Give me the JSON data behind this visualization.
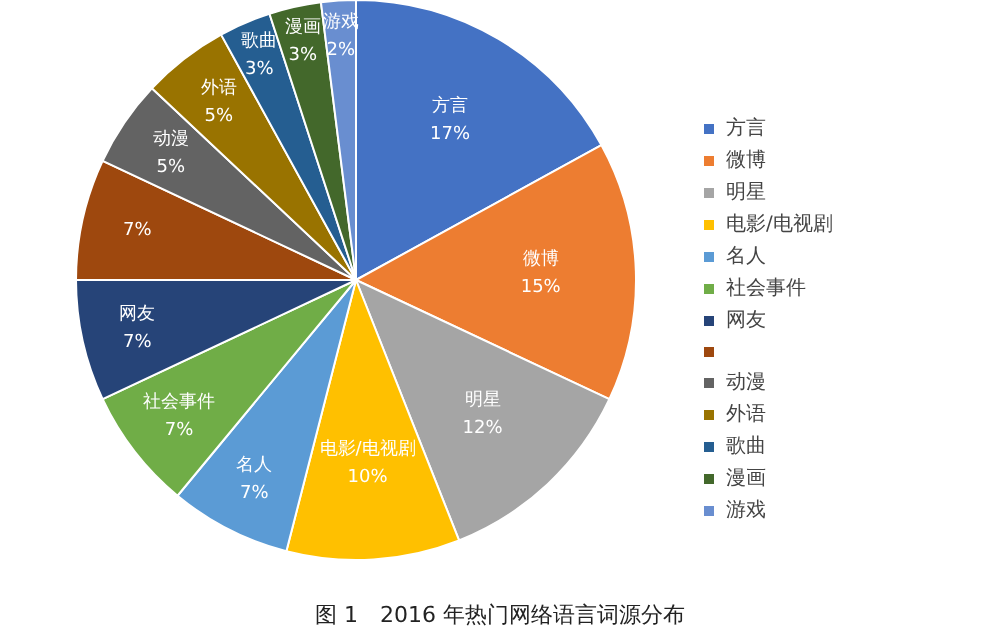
{
  "chart_data": {
    "type": "pie",
    "title": "图 1　2016 年热门网络语言词源分布",
    "categories": [
      "方言",
      "微博",
      "明星",
      "电影/电视剧",
      "名人",
      "社会事件",
      "网友",
      null,
      "动漫",
      "外语",
      "歌曲",
      "漫画",
      "游戏"
    ],
    "values": [
      17,
      15,
      12,
      10,
      7,
      7,
      7,
      7,
      5,
      5,
      3,
      3,
      2
    ],
    "value_labels": [
      "17%",
      "15%",
      "12%",
      "10%",
      "7%",
      "7%",
      "7%",
      "7%",
      "5%",
      "5%",
      "3%",
      "3%",
      "2%"
    ],
    "colors": [
      "#4472c4",
      "#ed7d31",
      "#a5a5a5",
      "#ffc000",
      "#5b9bd5",
      "#70ad47",
      "#264478",
      "#9e480e",
      "#636363",
      "#997300",
      "#255e91",
      "#43682b",
      "#698ed0"
    ],
    "legend": "right"
  }
}
